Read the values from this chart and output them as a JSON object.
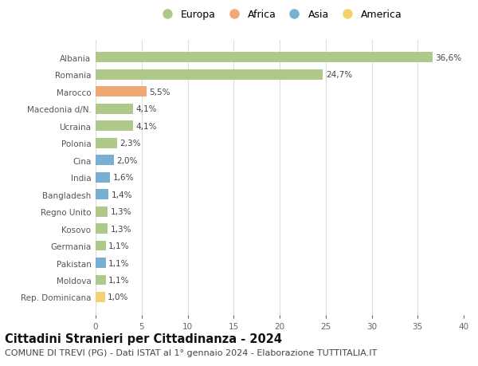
{
  "categories": [
    "Albania",
    "Romania",
    "Marocco",
    "Macedonia d/N.",
    "Ucraina",
    "Polonia",
    "Cina",
    "India",
    "Bangladesh",
    "Regno Unito",
    "Kosovo",
    "Germania",
    "Pakistan",
    "Moldova",
    "Rep. Dominicana"
  ],
  "values": [
    36.6,
    24.7,
    5.5,
    4.1,
    4.1,
    2.3,
    2.0,
    1.6,
    1.4,
    1.3,
    1.3,
    1.1,
    1.1,
    1.1,
    1.0
  ],
  "labels": [
    "36,6%",
    "24,7%",
    "5,5%",
    "4,1%",
    "4,1%",
    "2,3%",
    "2,0%",
    "1,6%",
    "1,4%",
    "1,3%",
    "1,3%",
    "1,1%",
    "1,1%",
    "1,1%",
    "1,0%"
  ],
  "continents": [
    "Europa",
    "Europa",
    "Africa",
    "Europa",
    "Europa",
    "Europa",
    "Asia",
    "Asia",
    "Asia",
    "Europa",
    "Europa",
    "Europa",
    "Asia",
    "Europa",
    "America"
  ],
  "colors": {
    "Europa": "#aec98a",
    "Africa": "#f0a875",
    "Asia": "#7aafd4",
    "America": "#f5d06e"
  },
  "legend_order": [
    "Europa",
    "Africa",
    "Asia",
    "America"
  ],
  "title": "Cittadini Stranieri per Cittadinanza - 2024",
  "subtitle": "COMUNE DI TREVI (PG) - Dati ISTAT al 1° gennaio 2024 - Elaborazione TUTTITALIA.IT",
  "xlim": [
    0,
    40
  ],
  "xticks": [
    0,
    5,
    10,
    15,
    20,
    25,
    30,
    35,
    40
  ],
  "background_color": "#ffffff",
  "grid_color": "#dddddd",
  "bar_height": 0.6,
  "title_fontsize": 10.5,
  "subtitle_fontsize": 8,
  "label_fontsize": 7.5,
  "tick_fontsize": 7.5,
  "legend_fontsize": 9
}
